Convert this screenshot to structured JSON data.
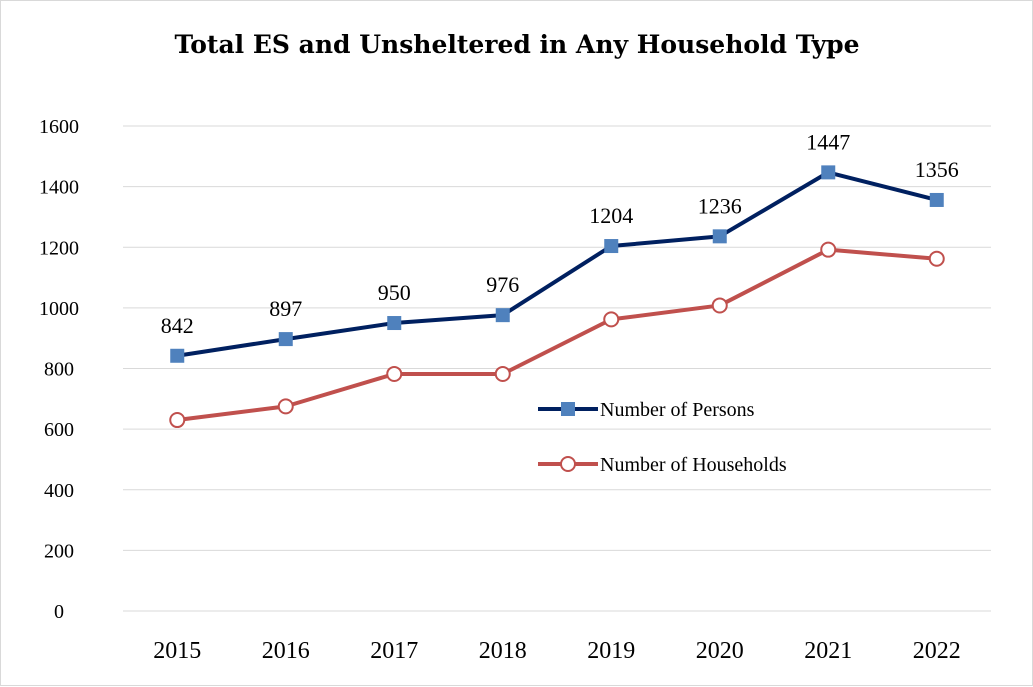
{
  "chart_data": {
    "type": "line",
    "title": "Total ES and Unsheltered in Any Household Type",
    "xlabel": "",
    "ylabel": "",
    "categories": [
      "2015",
      "2016",
      "2017",
      "2018",
      "2019",
      "2020",
      "2021",
      "2022"
    ],
    "ylim": [
      0,
      1600
    ],
    "yticks": [
      0,
      200,
      400,
      600,
      800,
      1000,
      1200,
      1400,
      1600
    ],
    "ytick_labels": [
      "0",
      "200",
      "400",
      "600",
      "800",
      "1000",
      "1200",
      "1400",
      "1600"
    ],
    "grid": true,
    "legend_position": "center-right",
    "series": [
      {
        "name": "Number of Persons",
        "values": [
          842,
          897,
          950,
          976,
          1204,
          1236,
          1447,
          1356
        ],
        "data_labels": [
          "842",
          "897",
          "950",
          "976",
          "1204",
          "1236",
          "1447",
          "1356"
        ],
        "line_color": "#002060",
        "marker": "square",
        "marker_color": "#4f81bd"
      },
      {
        "name": "Number of Households",
        "values": [
          630,
          675,
          782,
          782,
          962,
          1008,
          1192,
          1162
        ],
        "line_color": "#c0504d",
        "marker": "open-circle",
        "marker_color": "#c0504d"
      }
    ]
  }
}
